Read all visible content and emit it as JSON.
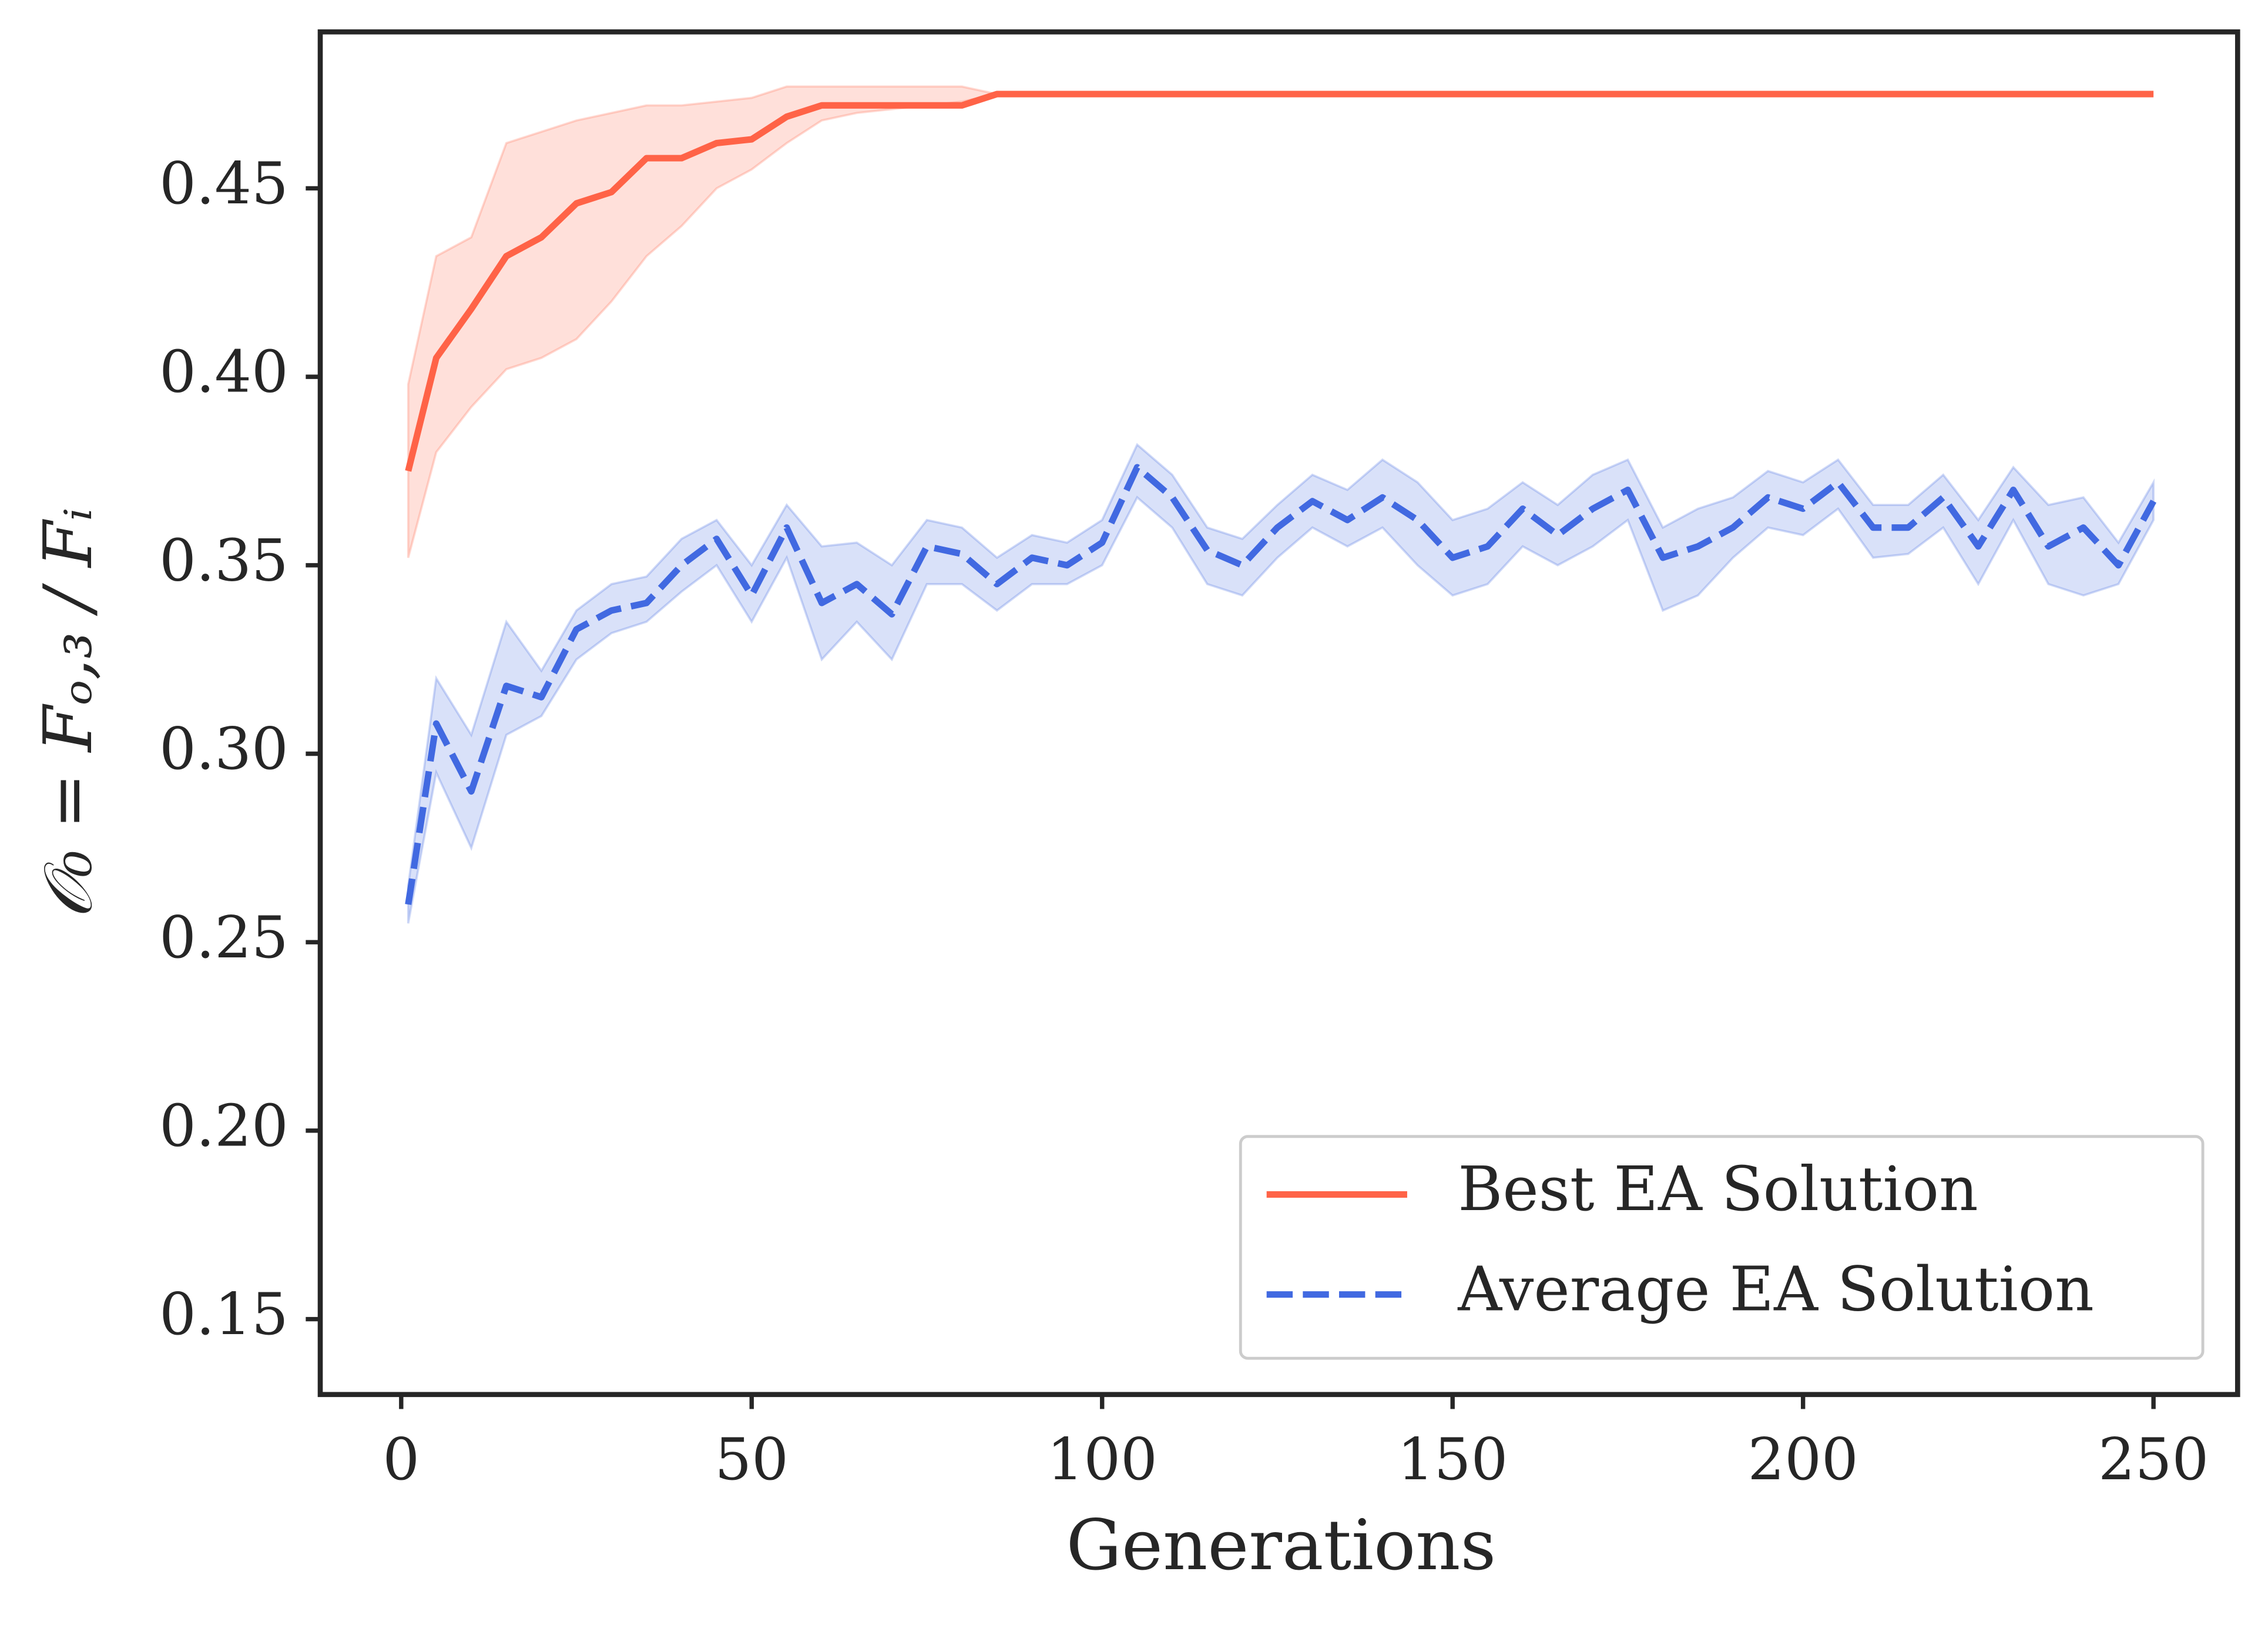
{
  "chart_data": {
    "type": "line",
    "xlabel": "Generations",
    "ylabel": "𝒪₀ = Fₒ,₃ / Fᵢ",
    "x": [
      1,
      5,
      10,
      15,
      20,
      25,
      30,
      35,
      40,
      45,
      50,
      55,
      60,
      65,
      70,
      75,
      80,
      85,
      90,
      95,
      100,
      105,
      110,
      115,
      120,
      125,
      130,
      135,
      140,
      145,
      150,
      155,
      160,
      165,
      170,
      175,
      180,
      185,
      190,
      195,
      200,
      205,
      210,
      215,
      220,
      225,
      230,
      235,
      240,
      245,
      250
    ],
    "series": [
      {
        "name": "Best EA Solution",
        "color": "#ff6347",
        "style": "solid",
        "values": [
          0.375,
          0.405,
          0.418,
          0.432,
          0.437,
          0.446,
          0.449,
          0.458,
          0.458,
          0.462,
          0.463,
          0.469,
          0.472,
          0.472,
          0.472,
          0.472,
          0.472,
          0.475,
          0.475,
          0.475,
          0.475,
          0.475,
          0.475,
          0.475,
          0.475,
          0.475,
          0.475,
          0.475,
          0.475,
          0.475,
          0.475,
          0.475,
          0.475,
          0.475,
          0.475,
          0.475,
          0.475,
          0.475,
          0.475,
          0.475,
          0.475,
          0.475,
          0.475,
          0.475,
          0.475,
          0.475,
          0.475,
          0.475,
          0.475,
          0.475,
          0.475
        ],
        "lower": [
          0.352,
          0.38,
          0.392,
          0.402,
          0.405,
          0.41,
          0.42,
          0.432,
          0.44,
          0.45,
          0.455,
          0.462,
          0.468,
          0.47,
          0.471,
          0.472,
          0.473,
          0.475,
          0.475,
          0.475,
          0.475,
          0.475,
          0.475,
          0.475,
          0.475,
          0.475,
          0.475,
          0.475,
          0.475,
          0.475,
          0.475,
          0.475,
          0.475,
          0.475,
          0.475,
          0.475,
          0.475,
          0.475,
          0.475,
          0.475,
          0.475,
          0.475,
          0.475,
          0.475,
          0.475,
          0.475,
          0.475,
          0.475,
          0.475,
          0.475,
          0.475
        ],
        "upper": [
          0.398,
          0.432,
          0.437,
          0.462,
          0.465,
          0.468,
          0.47,
          0.472,
          0.472,
          0.473,
          0.474,
          0.477,
          0.477,
          0.477,
          0.477,
          0.477,
          0.477,
          0.475,
          0.475,
          0.475,
          0.475,
          0.475,
          0.475,
          0.475,
          0.475,
          0.475,
          0.475,
          0.475,
          0.475,
          0.475,
          0.475,
          0.475,
          0.475,
          0.475,
          0.475,
          0.475,
          0.475,
          0.475,
          0.475,
          0.475,
          0.475,
          0.475,
          0.475,
          0.475,
          0.475,
          0.475,
          0.475,
          0.475,
          0.475,
          0.475,
          0.475
        ]
      },
      {
        "name": "Average EA Solution",
        "color": "#4169e1",
        "style": "dashed",
        "values": [
          0.26,
          0.308,
          0.29,
          0.318,
          0.315,
          0.333,
          0.338,
          0.34,
          0.35,
          0.357,
          0.342,
          0.36,
          0.34,
          0.345,
          0.337,
          0.355,
          0.353,
          0.345,
          0.352,
          0.35,
          0.356,
          0.376,
          0.368,
          0.354,
          0.35,
          0.36,
          0.367,
          0.362,
          0.368,
          0.362,
          0.352,
          0.355,
          0.365,
          0.358,
          0.365,
          0.37,
          0.352,
          0.355,
          0.36,
          0.368,
          0.365,
          0.372,
          0.36,
          0.36,
          0.368,
          0.355,
          0.37,
          0.355,
          0.36,
          0.35,
          0.367
        ],
        "lower": [
          0.255,
          0.295,
          0.275,
          0.305,
          0.31,
          0.325,
          0.332,
          0.335,
          0.343,
          0.35,
          0.335,
          0.352,
          0.325,
          0.335,
          0.325,
          0.345,
          0.345,
          0.338,
          0.345,
          0.345,
          0.35,
          0.368,
          0.36,
          0.345,
          0.342,
          0.352,
          0.36,
          0.355,
          0.36,
          0.35,
          0.342,
          0.345,
          0.355,
          0.35,
          0.355,
          0.362,
          0.338,
          0.342,
          0.352,
          0.36,
          0.358,
          0.365,
          0.352,
          0.353,
          0.36,
          0.345,
          0.362,
          0.345,
          0.342,
          0.345,
          0.362
        ],
        "upper": [
          0.265,
          0.32,
          0.305,
          0.335,
          0.322,
          0.338,
          0.345,
          0.347,
          0.357,
          0.362,
          0.35,
          0.366,
          0.355,
          0.356,
          0.35,
          0.362,
          0.36,
          0.352,
          0.358,
          0.356,
          0.362,
          0.382,
          0.374,
          0.36,
          0.357,
          0.366,
          0.374,
          0.37,
          0.378,
          0.372,
          0.362,
          0.365,
          0.372,
          0.366,
          0.374,
          0.378,
          0.36,
          0.365,
          0.368,
          0.375,
          0.372,
          0.378,
          0.366,
          0.366,
          0.374,
          0.362,
          0.376,
          0.366,
          0.368,
          0.356,
          0.372
        ]
      }
    ],
    "xlim": [
      -11.55,
      262.0
    ],
    "ylim": [
      0.13,
      0.4915
    ],
    "xticks": [
      0,
      50,
      100,
      150,
      200,
      250
    ],
    "yticks": [
      0.15,
      {
        "value": 0.2,
        "label": "0.20"
      },
      0.25,
      {
        "value": 0.3,
        "label": "0.30"
      },
      0.35,
      {
        "value": 0.4,
        "label": "0.40"
      },
      0.45
    ],
    "grid": false,
    "legend": "lower right"
  }
}
